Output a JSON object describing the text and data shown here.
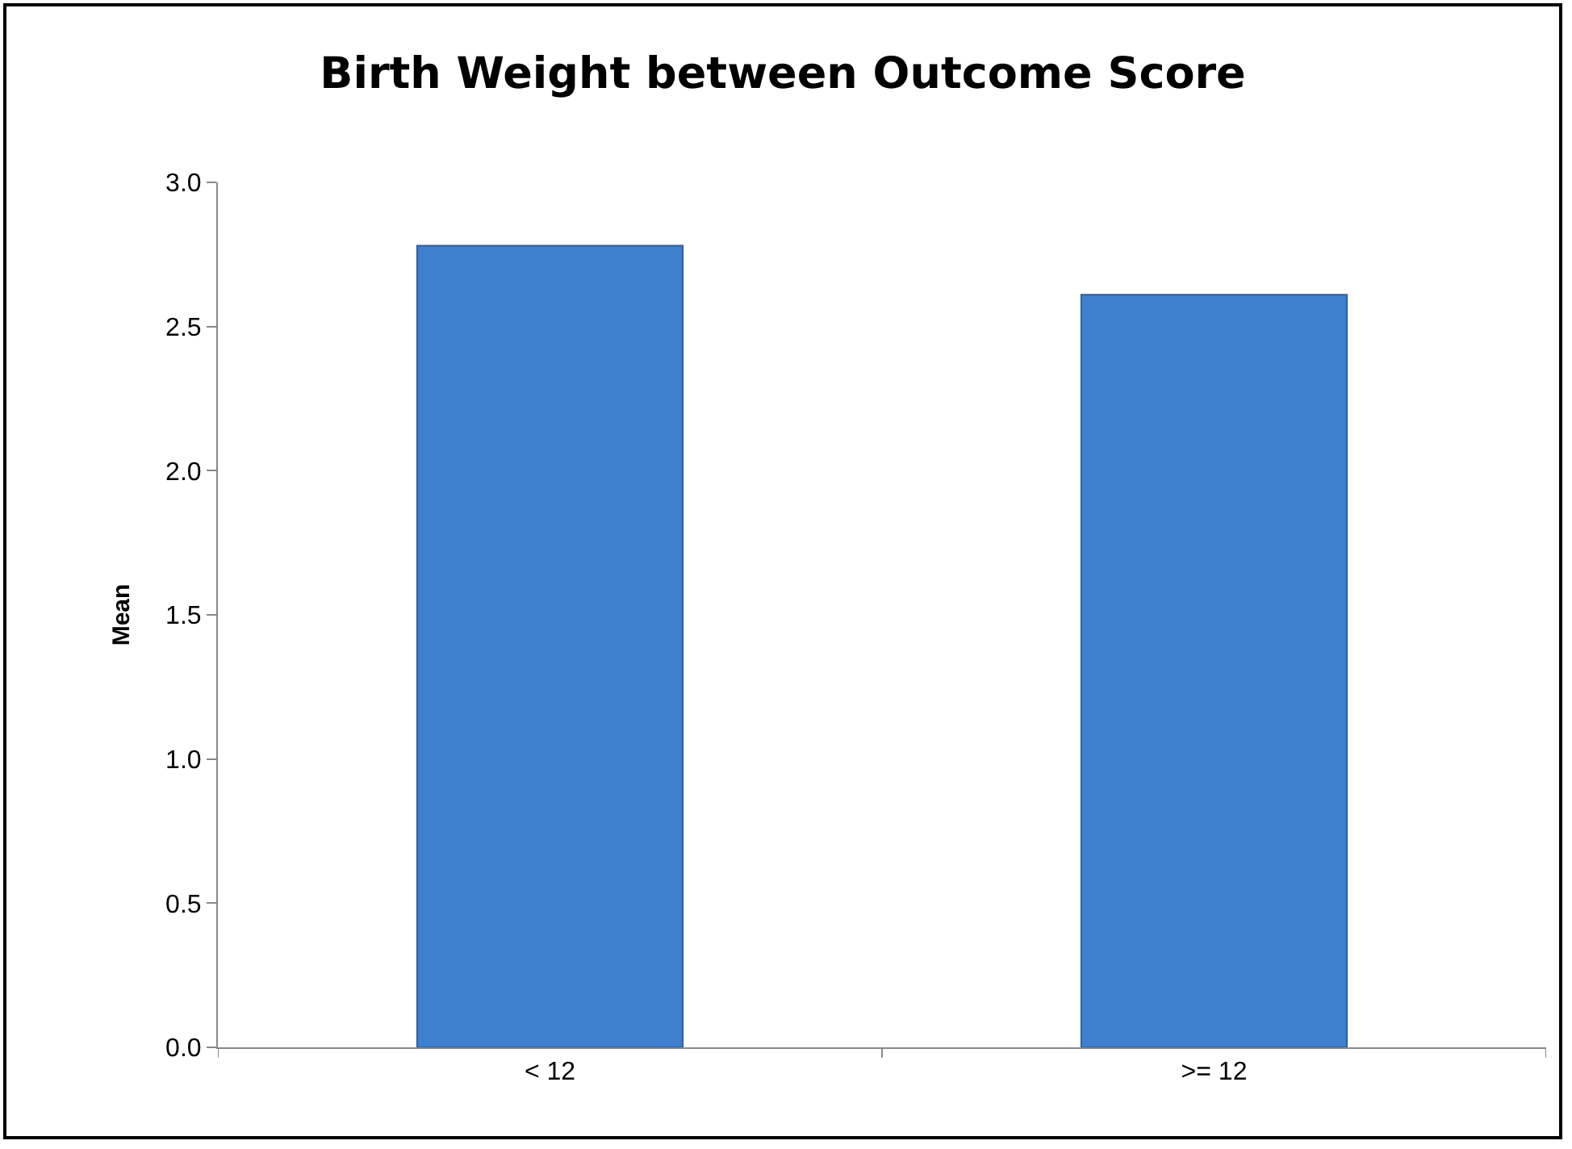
{
  "chart_data": {
    "type": "bar",
    "title": "Birth Weight between Outcome Score",
    "ylabel": "Mean",
    "categories": [
      "< 12",
      ">= 12"
    ],
    "values": [
      2.78,
      2.61
    ],
    "color": "#3f7fcf",
    "ylim": [
      0,
      3
    ],
    "yticks": [
      {
        "value": 0,
        "label": "0.0"
      },
      {
        "value": 0.5,
        "label": "0.5"
      },
      {
        "value": 1,
        "label": "1.0"
      },
      {
        "value": 1.5,
        "label": "1.5"
      },
      {
        "value": 2,
        "label": "2.0"
      },
      {
        "value": 2.5,
        "label": "2.5"
      },
      {
        "value": 3,
        "label": "3.0"
      }
    ],
    "grid": false
  }
}
